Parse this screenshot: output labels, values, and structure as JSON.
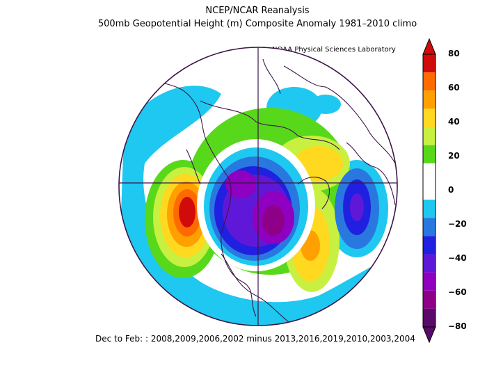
{
  "title": "NCEP/NCAR Reanalysis",
  "subtitle": "500mb Geopotential Height (m) Composite Anomaly 1981–2010 climo",
  "credit": "NOAA Physical Sciences Laboratory",
  "footer": "Dec to Feb: : 2008,2009,2006,2002 minus 2013,2016,2019,2010,2003,2004",
  "colorbar": {
    "labels": [
      "80",
      "60",
      "40",
      "20",
      "0",
      "−20",
      "−40",
      "−60",
      "−80"
    ],
    "colors": [
      "#d10a0a",
      "#ff6a00",
      "#ffa000",
      "#ffd820",
      "#c8f040",
      "#58d81a",
      "#ffffff",
      "#ffffff",
      "#1ec8f0",
      "#2878e0",
      "#2020e0",
      "#6018d8",
      "#9000c0",
      "#8e0088",
      "#5a0a6a"
    ]
  },
  "map": {
    "projection": "north-polar-stereographic",
    "variable": "500mb geopotential height anomaly",
    "units": "m",
    "features": [
      "negative-anomaly-north-america-arctic",
      "positive-anomaly-north-pacific",
      "positive-anomaly-north-atlantic",
      "negative-anomaly-europe-siberia",
      "positive-anomaly-east-asia"
    ]
  }
}
